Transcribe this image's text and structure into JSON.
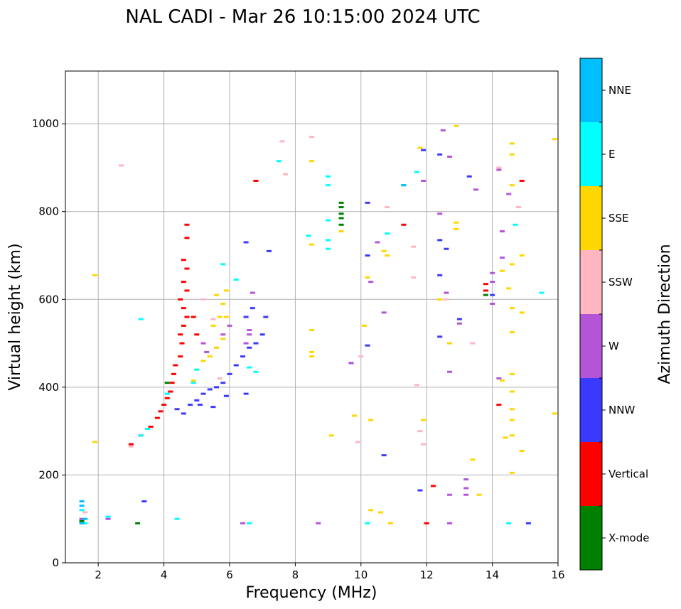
{
  "chart_data": {
    "type": "scatter",
    "title": "NAL CADI - Mar 26 10:15:00 2024 UTC",
    "xlabel": "Frequency (MHz)",
    "ylabel": "Virtual height (km)",
    "xlim": [
      1,
      16
    ],
    "ylim": [
      0,
      1120
    ],
    "xticks": [
      "2",
      "4",
      "6",
      "8",
      "10",
      "12",
      "14",
      "16"
    ],
    "yticks": [
      "0",
      "200",
      "400",
      "600",
      "800",
      "1000"
    ],
    "grid": true,
    "colorbar": {
      "label": "Azimuth Direction",
      "categories": [
        {
          "name": "X-mode",
          "color": "#008000"
        },
        {
          "name": "Vertical",
          "color": "#ff0000"
        },
        {
          "name": "NNW",
          "color": "#3a3aff"
        },
        {
          "name": "W",
          "color": "#b455d8"
        },
        {
          "name": "SSW",
          "color": "#ffb6c1"
        },
        {
          "name": "SSE",
          "color": "#ffd700"
        },
        {
          "name": "E",
          "color": "#00ffff"
        },
        {
          "name": "NNE",
          "color": "#00bfff"
        }
      ]
    },
    "series": [
      {
        "name": "Vertical",
        "points": [
          [
            3.0,
            270
          ],
          [
            3.3,
            290
          ],
          [
            3.6,
            310
          ],
          [
            3.8,
            330
          ],
          [
            3.9,
            345
          ],
          [
            4.0,
            360
          ],
          [
            4.1,
            375
          ],
          [
            4.2,
            390
          ],
          [
            4.25,
            410
          ],
          [
            4.3,
            430
          ],
          [
            4.35,
            450
          ],
          [
            4.5,
            470
          ],
          [
            4.55,
            500
          ],
          [
            4.5,
            520
          ],
          [
            4.6,
            540
          ],
          [
            4.7,
            560
          ],
          [
            4.6,
            580
          ],
          [
            4.5,
            600
          ],
          [
            4.7,
            620
          ],
          [
            4.6,
            640
          ],
          [
            4.7,
            670
          ],
          [
            4.6,
            690
          ],
          [
            4.7,
            740
          ],
          [
            4.7,
            770
          ],
          [
            5.0,
            520
          ],
          [
            4.9,
            560
          ],
          [
            6.8,
            870
          ],
          [
            12.2,
            175
          ],
          [
            12.0,
            90
          ],
          [
            14.9,
            870
          ],
          [
            14.2,
            360
          ],
          [
            11.3,
            770
          ],
          [
            13.8,
            635
          ],
          [
            13.8,
            620
          ]
        ]
      },
      {
        "name": "NNW",
        "points": [
          [
            4.4,
            350
          ],
          [
            4.6,
            340
          ],
          [
            4.8,
            360
          ],
          [
            5.0,
            370
          ],
          [
            5.2,
            385
          ],
          [
            5.4,
            395
          ],
          [
            5.6,
            400
          ],
          [
            5.8,
            410
          ],
          [
            6.0,
            430
          ],
          [
            6.2,
            450
          ],
          [
            6.4,
            470
          ],
          [
            6.6,
            490
          ],
          [
            6.8,
            500
          ],
          [
            7.0,
            520
          ],
          [
            7.1,
            560
          ],
          [
            6.7,
            580
          ],
          [
            6.5,
            560
          ],
          [
            5.1,
            360
          ],
          [
            5.5,
            355
          ],
          [
            5.9,
            380
          ],
          [
            6.5,
            385
          ],
          [
            7.2,
            710
          ],
          [
            6.5,
            730
          ],
          [
            10.2,
            820
          ],
          [
            10.2,
            700
          ],
          [
            10.2,
            495
          ],
          [
            9.7,
            455
          ],
          [
            11.9,
            940
          ],
          [
            12.4,
            930
          ],
          [
            12.4,
            735
          ],
          [
            12.6,
            715
          ],
          [
            12.4,
            655
          ],
          [
            12.4,
            515
          ],
          [
            13.3,
            880
          ],
          [
            13.0,
            555
          ],
          [
            11.8,
            165
          ],
          [
            14.0,
            610
          ],
          [
            15.1,
            90
          ],
          [
            3.4,
            140
          ],
          [
            10.7,
            245
          ]
        ]
      },
      {
        "name": "W",
        "points": [
          [
            5.2,
            500
          ],
          [
            5.3,
            480
          ],
          [
            5.8,
            520
          ],
          [
            6.0,
            540
          ],
          [
            6.5,
            500
          ],
          [
            6.6,
            530
          ],
          [
            6.7,
            615
          ],
          [
            6.6,
            520
          ],
          [
            12.4,
            795
          ],
          [
            12.7,
            925
          ],
          [
            12.5,
            985
          ],
          [
            12.6,
            615
          ],
          [
            12.7,
            435
          ],
          [
            13.0,
            545
          ],
          [
            13.2,
            190
          ],
          [
            13.2,
            170
          ],
          [
            13.2,
            155
          ],
          [
            12.7,
            155
          ],
          [
            12.7,
            90
          ],
          [
            14.0,
            660
          ],
          [
            14.0,
            640
          ],
          [
            14.0,
            590
          ],
          [
            14.2,
            895
          ],
          [
            14.3,
            695
          ],
          [
            14.2,
            420
          ],
          [
            14.5,
            840
          ],
          [
            14.3,
            755
          ],
          [
            10.7,
            570
          ],
          [
            10.5,
            730
          ],
          [
            10.3,
            640
          ],
          [
            9.7,
            455
          ],
          [
            11.9,
            870
          ],
          [
            13.5,
            850
          ],
          [
            1.5,
            100
          ],
          [
            2.3,
            100
          ],
          [
            8.7,
            90
          ],
          [
            6.4,
            90
          ]
        ]
      },
      {
        "name": "SSW",
        "points": [
          [
            3.0,
            265
          ],
          [
            5.5,
            555
          ],
          [
            5.2,
            600
          ],
          [
            5.7,
            420
          ],
          [
            5.6,
            490
          ],
          [
            10.0,
            470
          ],
          [
            9.9,
            275
          ],
          [
            11.7,
            405
          ],
          [
            11.8,
            300
          ],
          [
            11.9,
            270
          ],
          [
            13.4,
            500
          ],
          [
            12.6,
            600
          ],
          [
            14.2,
            900
          ],
          [
            14.8,
            810
          ],
          [
            8.5,
            970
          ],
          [
            7.6,
            960
          ],
          [
            7.7,
            885
          ],
          [
            10.8,
            810
          ],
          [
            11.6,
            720
          ],
          [
            11.6,
            650
          ],
          [
            2.7,
            905
          ],
          [
            1.6,
            115
          ]
        ]
      },
      {
        "name": "SSE",
        "points": [
          [
            4.9,
            415
          ],
          [
            5.0,
            440
          ],
          [
            5.2,
            460
          ],
          [
            5.4,
            470
          ],
          [
            5.6,
            490
          ],
          [
            5.8,
            510
          ],
          [
            5.5,
            540
          ],
          [
            5.7,
            560
          ],
          [
            5.8,
            590
          ],
          [
            5.9,
            560
          ],
          [
            5.9,
            620
          ],
          [
            5.6,
            610
          ],
          [
            1.9,
            655
          ],
          [
            1.9,
            275
          ],
          [
            8.5,
            915
          ],
          [
            8.5,
            725
          ],
          [
            8.5,
            530
          ],
          [
            8.5,
            480
          ],
          [
            8.5,
            470
          ],
          [
            9.1,
            290
          ],
          [
            9.4,
            755
          ],
          [
            9.8,
            335
          ],
          [
            10.1,
            540
          ],
          [
            10.2,
            650
          ],
          [
            10.3,
            325
          ],
          [
            10.7,
            710
          ],
          [
            10.8,
            700
          ],
          [
            11.8,
            945
          ],
          [
            11.9,
            325
          ],
          [
            12.4,
            600
          ],
          [
            12.7,
            500
          ],
          [
            12.9,
            995
          ],
          [
            12.9,
            775
          ],
          [
            12.9,
            760
          ],
          [
            13.4,
            235
          ],
          [
            13.6,
            155
          ],
          [
            14.4,
            285
          ],
          [
            14.6,
            955
          ],
          [
            14.6,
            930
          ],
          [
            14.6,
            860
          ],
          [
            14.6,
            680
          ],
          [
            14.6,
            580
          ],
          [
            14.6,
            525
          ],
          [
            14.6,
            430
          ],
          [
            14.6,
            390
          ],
          [
            14.6,
            350
          ],
          [
            14.6,
            325
          ],
          [
            14.6,
            290
          ],
          [
            14.6,
            205
          ],
          [
            14.9,
            700
          ],
          [
            14.9,
            570
          ],
          [
            14.9,
            255
          ],
          [
            15.9,
            965
          ],
          [
            15.9,
            340
          ],
          [
            10.3,
            120
          ],
          [
            10.6,
            115
          ],
          [
            10.9,
            90
          ],
          [
            14.5,
            625
          ],
          [
            14.3,
            665
          ],
          [
            14.3,
            415
          ]
        ]
      },
      {
        "name": "E",
        "points": [
          [
            3.5,
            305
          ],
          [
            3.3,
            290
          ],
          [
            4.1,
            385
          ],
          [
            4.9,
            410
          ],
          [
            5.0,
            440
          ],
          [
            5.8,
            680
          ],
          [
            6.2,
            645
          ],
          [
            6.6,
            445
          ],
          [
            6.8,
            435
          ],
          [
            9.0,
            880
          ],
          [
            9.0,
            860
          ],
          [
            9.0,
            780
          ],
          [
            9.0,
            735
          ],
          [
            9.0,
            715
          ],
          [
            8.4,
            745
          ],
          [
            10.2,
            90
          ],
          [
            10.8,
            750
          ],
          [
            11.3,
            860
          ],
          [
            11.7,
            890
          ],
          [
            14.5,
            90
          ],
          [
            14.7,
            770
          ],
          [
            15.5,
            615
          ],
          [
            7.5,
            915
          ],
          [
            3.3,
            555
          ],
          [
            1.5,
            120
          ],
          [
            1.6,
            90
          ],
          [
            2.3,
            105
          ],
          [
            4.4,
            100
          ],
          [
            6.6,
            90
          ]
        ]
      },
      {
        "name": "NNE",
        "points": [
          [
            1.5,
            140
          ],
          [
            1.5,
            130
          ],
          [
            1.6,
            100
          ],
          [
            1.5,
            90
          ],
          [
            11.3,
            860
          ]
        ]
      },
      {
        "name": "X-mode",
        "points": [
          [
            9.4,
            820
          ],
          [
            9.4,
            810
          ],
          [
            9.4,
            795
          ],
          [
            9.4,
            785
          ],
          [
            9.4,
            770
          ],
          [
            3.2,
            90
          ],
          [
            1.5,
            95
          ],
          [
            13.8,
            610
          ],
          [
            4.1,
            410
          ]
        ]
      }
    ]
  }
}
